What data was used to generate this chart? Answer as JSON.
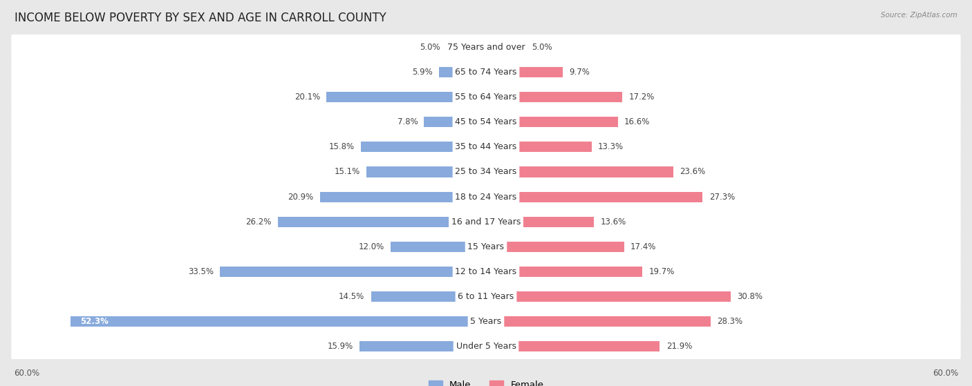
{
  "title": "INCOME BELOW POVERTY BY SEX AND AGE IN CARROLL COUNTY",
  "source": "Source: ZipAtlas.com",
  "categories": [
    "Under 5 Years",
    "5 Years",
    "6 to 11 Years",
    "12 to 14 Years",
    "15 Years",
    "16 and 17 Years",
    "18 to 24 Years",
    "25 to 34 Years",
    "35 to 44 Years",
    "45 to 54 Years",
    "55 to 64 Years",
    "65 to 74 Years",
    "75 Years and over"
  ],
  "male": [
    15.9,
    52.3,
    14.5,
    33.5,
    12.0,
    26.2,
    20.9,
    15.1,
    15.8,
    7.8,
    20.1,
    5.9,
    5.0
  ],
  "female": [
    21.9,
    28.3,
    30.8,
    19.7,
    17.4,
    13.6,
    27.3,
    23.6,
    13.3,
    16.6,
    17.2,
    9.7,
    5.0
  ],
  "male_color": "#88aadd",
  "female_color": "#f08090",
  "background_color": "#e8e8e8",
  "row_bg_color": "#ffffff",
  "xlim": 60.0,
  "title_fontsize": 12,
  "label_fontsize": 9,
  "value_fontsize": 8.5,
  "legend_male": "Male",
  "legend_female": "Female"
}
